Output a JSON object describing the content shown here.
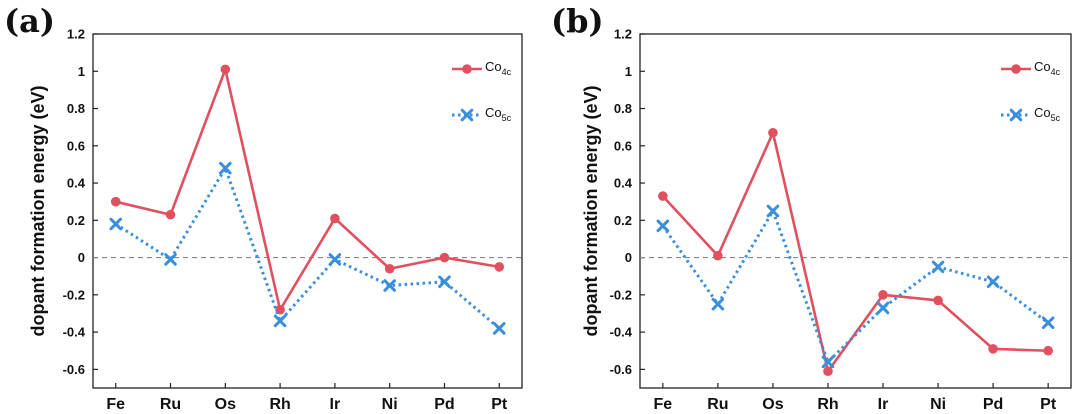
{
  "chart_data": [
    {
      "type": "line",
      "panel_label": "(a)",
      "ylabel": "dopant formation energy (eV)",
      "xlabel": "",
      "ylim": [
        -0.7,
        1.2
      ],
      "yticks": [
        1.2,
        1,
        0.8,
        0.6,
        0.4,
        0.2,
        0,
        -0.2,
        -0.4,
        -0.6
      ],
      "ytick_labels": [
        "1.2",
        "1",
        "0.8",
        "0.6",
        "0.4",
        "0.2",
        "0",
        "-0.2",
        "-0.4",
        "-0.6"
      ],
      "reference_line": 0,
      "categories": [
        "Fe",
        "Ru",
        "Os",
        "Rh",
        "Ir",
        "Ni",
        "Pd",
        "Pt"
      ],
      "legend_position": "top-right",
      "series": [
        {
          "name": "Co4c",
          "name_base": "Co",
          "name_sub": "4c",
          "color": "#e0505f",
          "marker": "circle",
          "line": "solid",
          "values": [
            0.3,
            0.23,
            1.01,
            -0.28,
            0.21,
            -0.06,
            0.0,
            -0.05
          ]
        },
        {
          "name": "Co5c",
          "name_base": "Co",
          "name_sub": "5c",
          "color": "#3a8fdc",
          "marker": "x",
          "line": "dotted",
          "values": [
            0.18,
            -0.01,
            0.48,
            -0.34,
            -0.01,
            -0.15,
            -0.13,
            -0.38
          ]
        }
      ]
    },
    {
      "type": "line",
      "panel_label": "(b)",
      "ylabel": "dopant formation energy (eV)",
      "xlabel": "",
      "ylim": [
        -0.7,
        1.2
      ],
      "yticks": [
        1.2,
        1,
        0.8,
        0.6,
        0.4,
        0.2,
        0,
        -0.2,
        -0.4,
        -0.6
      ],
      "ytick_labels": [
        "1.2",
        "1",
        "0.8",
        "0.6",
        "0.4",
        "0.2",
        "0",
        "-0.2",
        "-0.4",
        "-0.6"
      ],
      "reference_line": 0,
      "categories": [
        "Fe",
        "Ru",
        "Os",
        "Rh",
        "Ir",
        "Ni",
        "Pd",
        "Pt"
      ],
      "legend_position": "top-right",
      "series": [
        {
          "name": "Co4c",
          "name_base": "Co",
          "name_sub": "4c",
          "color": "#e0505f",
          "marker": "circle",
          "line": "solid",
          "values": [
            0.33,
            0.01,
            0.67,
            -0.61,
            -0.2,
            -0.23,
            -0.49,
            -0.5
          ]
        },
        {
          "name": "Co5c",
          "name_base": "Co",
          "name_sub": "5c",
          "color": "#3a8fdc",
          "marker": "x",
          "line": "dotted",
          "values": [
            0.17,
            -0.25,
            0.25,
            -0.56,
            -0.27,
            -0.05,
            -0.13,
            -0.35
          ]
        }
      ]
    }
  ]
}
